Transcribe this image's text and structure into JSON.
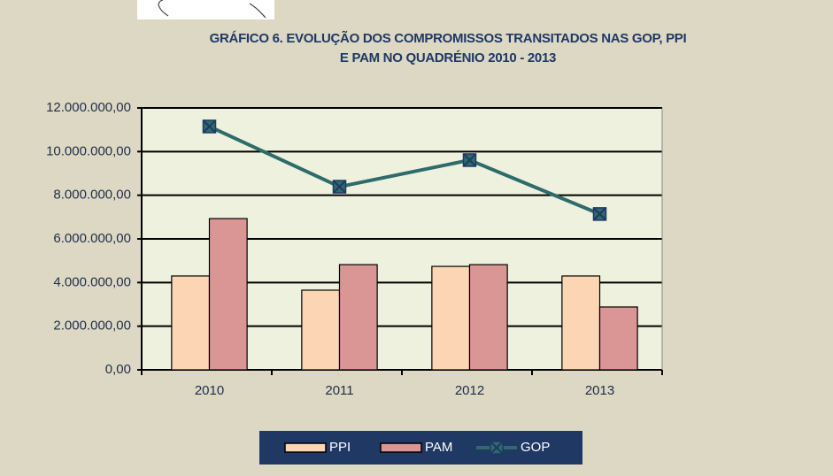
{
  "chart_data": {
    "type": "bar_line",
    "title": [
      "GRÁFICO 6. EVOLUÇÃO DOS COMPROMISSOS TRANSITADOS NAS GOP, PPI",
      "E PAM NO QUADRÉNIO 2010 - 2013"
    ],
    "categories": [
      "2010",
      "2011",
      "2012",
      "2013"
    ],
    "series": [
      {
        "name": "PPI",
        "color": "#fcd5b4",
        "kind": "bar",
        "values": [
          4300000,
          3650000,
          4740000,
          4300000
        ]
      },
      {
        "name": "PAM",
        "color": "#d99694",
        "kind": "bar",
        "values": [
          6930000,
          4820000,
          4820000,
          2880000
        ]
      },
      {
        "name": "GOP",
        "color": "#2e6b6b",
        "kind": "line",
        "values": [
          11150000,
          8390000,
          9610000,
          7140000
        ]
      }
    ],
    "ylim": [
      0,
      12000000
    ],
    "yticks": [
      {
        "value": 0,
        "label": "0,00"
      },
      {
        "value": 2000000,
        "label": "2.000.000,00"
      },
      {
        "value": 4000000,
        "label": "4.000.000,00"
      },
      {
        "value": 6000000,
        "label": "6.000.000,00"
      },
      {
        "value": 8000000,
        "label": "8.000.000,00"
      },
      {
        "value": 10000000,
        "label": "10.000.000,00"
      },
      {
        "value": 12000000,
        "label": "12.000.000,00"
      }
    ],
    "grid": true,
    "legend": "bottom"
  }
}
